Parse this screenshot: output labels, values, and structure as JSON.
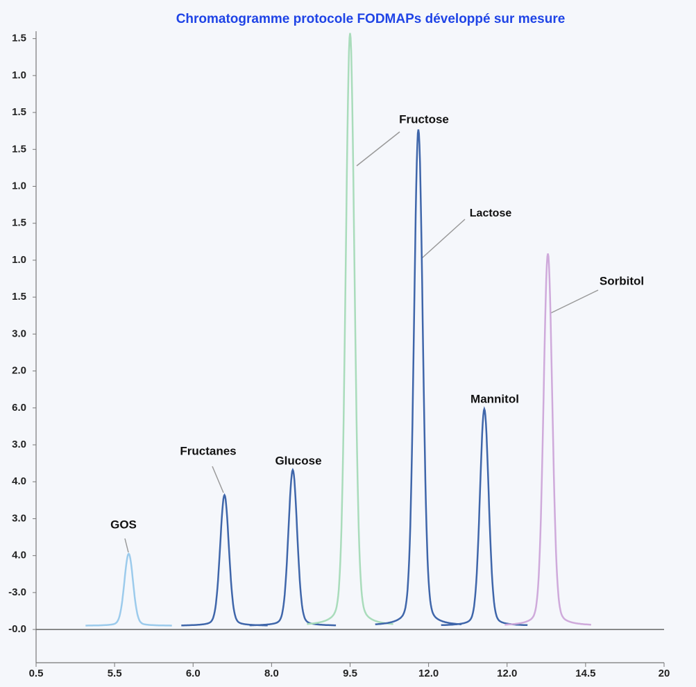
{
  "chart_data": {
    "type": "chromatogram",
    "title": "Chromatogramme protocole FODMAPs développé sur mesure",
    "x": [
      1.18,
      2.4,
      3.27,
      4.0,
      4.87,
      5.71,
      6.52
    ],
    "values": [
      2.05,
      3.64,
      4.32,
      16.15,
      13.54,
      5.97,
      10.18
    ],
    "colors": [
      "#9ccbec",
      "#3f66aa",
      "#3f66aa",
      "#a9dcbb",
      "#3f66aa",
      "#3f66aa",
      "#cfaadb"
    ],
    "baseline": 0.1,
    "annotations": [
      "GOS",
      "Fructanes",
      "Glucose",
      "Fructose",
      "Lactose",
      "Mannitol",
      "Sorbitol"
    ],
    "xlim": [
      0,
      8
    ],
    "xticks": [
      {
        "value": 0,
        "label": "0.5"
      },
      {
        "value": 1,
        "label": "5.5"
      },
      {
        "value": 2,
        "label": "6.0"
      },
      {
        "value": 3,
        "label": "8.0"
      },
      {
        "value": 4,
        "label": "9.5"
      },
      {
        "value": 5,
        "label": "12.0"
      },
      {
        "value": 6,
        "label": "12.0"
      },
      {
        "value": 7,
        "label": "14.5"
      },
      {
        "value": 8,
        "label": "20"
      }
    ],
    "ylim": [
      -0.9,
      16.2
    ],
    "yticks": [
      {
        "value": 0,
        "label": "-0.0"
      },
      {
        "value": 1,
        "label": "-3.0"
      },
      {
        "value": 2,
        "label": "4.0"
      },
      {
        "value": 3,
        "label": "3.0"
      },
      {
        "value": 4,
        "label": "4.0"
      },
      {
        "value": 5,
        "label": "3.0"
      },
      {
        "value": 6,
        "label": "6.0"
      },
      {
        "value": 7,
        "label": "2.0"
      },
      {
        "value": 8,
        "label": "3.0"
      },
      {
        "value": 9,
        "label": "1.5"
      },
      {
        "value": 10,
        "label": "1.0"
      },
      {
        "value": 11,
        "label": "1.5"
      },
      {
        "value": 12,
        "label": "1.0"
      },
      {
        "value": 13,
        "label": "1.5"
      },
      {
        "value": 14,
        "label": "1.5"
      },
      {
        "value": 15,
        "label": "1.0"
      },
      {
        "value": 16,
        "label": "1.5"
      }
    ]
  }
}
